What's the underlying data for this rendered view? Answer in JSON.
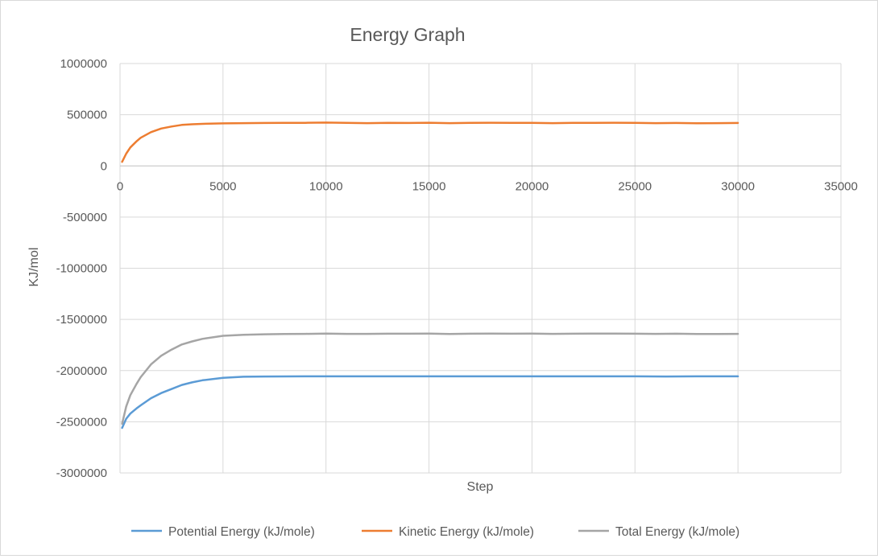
{
  "chart_data": {
    "type": "line",
    "title": "Energy Graph",
    "xlabel": "Step",
    "ylabel": "KJ/mol",
    "xlim": [
      0,
      35000
    ],
    "ylim": [
      -3000000,
      1000000
    ],
    "x_ticks": [
      "0",
      "5000",
      "10000",
      "15000",
      "20000",
      "25000",
      "30000",
      "35000"
    ],
    "y_ticks": [
      "1000000",
      "500000",
      "0",
      "-500000",
      "-1000000",
      "-1500000",
      "-2000000",
      "-2500000",
      "-3000000"
    ],
    "grid": true,
    "legend_position": "bottom",
    "series": [
      {
        "name": "Potential Energy (kJ/mole)",
        "color": "#5b9bd5",
        "x": [
          100,
          300,
          500,
          800,
          1000,
          1500,
          2000,
          2500,
          3000,
          3500,
          4000,
          5000,
          6000,
          7000,
          8000,
          9000,
          10000,
          12000,
          15000,
          18000,
          20000,
          22000,
          25000,
          26500,
          28000,
          30000
        ],
        "y": [
          -2560000,
          -2470000,
          -2420000,
          -2370000,
          -2340000,
          -2270000,
          -2220000,
          -2180000,
          -2140000,
          -2115000,
          -2095000,
          -2070000,
          -2060000,
          -2058000,
          -2057000,
          -2056000,
          -2056000,
          -2056000,
          -2056000,
          -2056000,
          -2056000,
          -2056000,
          -2056000,
          -2058000,
          -2056000,
          -2056000
        ]
      },
      {
        "name": "Kinetic Energy (kJ/mole)",
        "color": "#ed7d31",
        "x": [
          100,
          300,
          500,
          800,
          1000,
          1500,
          2000,
          2500,
          3000,
          3500,
          4000,
          5000,
          6000,
          7000,
          8000,
          9000,
          10000,
          11000,
          12000,
          13000,
          14000,
          15000,
          16000,
          17000,
          18000,
          19000,
          20000,
          21000,
          22000,
          23000,
          24000,
          25000,
          26000,
          27000,
          28000,
          29000,
          30000
        ],
        "y": [
          40000,
          120000,
          180000,
          240000,
          275000,
          330000,
          365000,
          385000,
          400000,
          407000,
          411000,
          415000,
          418000,
          419000,
          420000,
          421000,
          423000,
          420000,
          418000,
          421000,
          419000,
          422000,
          418000,
          420000,
          422000,
          420000,
          421000,
          418000,
          420000,
          421000,
          422000,
          420000,
          418000,
          419000,
          417000,
          418000,
          419000
        ]
      },
      {
        "name": "Total Energy (kJ/mole)",
        "color": "#a5a5a5",
        "x": [
          100,
          300,
          500,
          800,
          1000,
          1500,
          2000,
          2500,
          3000,
          3500,
          4000,
          5000,
          6000,
          7000,
          8000,
          9000,
          10000,
          11000,
          12000,
          13000,
          14000,
          15000,
          16000,
          17000,
          18000,
          19000,
          20000,
          21000,
          22000,
          23000,
          24000,
          25000,
          26000,
          27000,
          28000,
          29000,
          30000
        ],
        "y": [
          -2520000,
          -2350000,
          -2240000,
          -2130000,
          -2065000,
          -1940000,
          -1855000,
          -1795000,
          -1745000,
          -1715000,
          -1690000,
          -1660000,
          -1650000,
          -1645000,
          -1643000,
          -1641000,
          -1638000,
          -1641000,
          -1641000,
          -1640000,
          -1640000,
          -1639000,
          -1642000,
          -1640000,
          -1638000,
          -1640000,
          -1639000,
          -1641000,
          -1640000,
          -1639000,
          -1638000,
          -1640000,
          -1641000,
          -1640000,
          -1643000,
          -1642000,
          -1641000
        ]
      }
    ]
  }
}
